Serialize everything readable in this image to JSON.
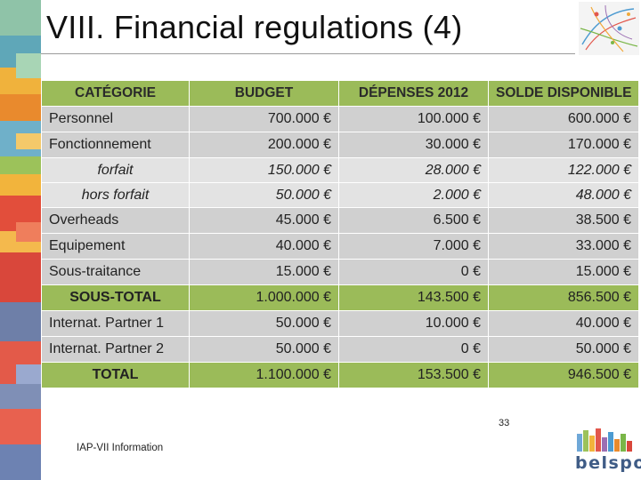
{
  "slide": {
    "title": "VIII. Financial regulations (4)",
    "footer": "IAP-VII Information",
    "page_number": "33",
    "logo_text": "belspo"
  },
  "table": {
    "headers": [
      "CATÉGORIE",
      "BUDGET",
      "DÉPENSES 2012",
      "SOLDE DISPONIBLE"
    ],
    "rows": [
      {
        "category": "Personnel",
        "budget": "700.000 €",
        "expenses": "100.000 €",
        "balance": "600.000 €"
      },
      {
        "category": "Fonctionnement",
        "budget": "200.000 €",
        "expenses": "30.000 €",
        "balance": "170.000 €"
      },
      {
        "category": "forfait",
        "budget": "150.000 €",
        "expenses": "28.000 €",
        "balance": "122.000 €"
      },
      {
        "category": "hors forfait",
        "budget": "50.000 €",
        "expenses": "2.000 €",
        "balance": "48.000 €"
      },
      {
        "category": "Overheads",
        "budget": "45.000 €",
        "expenses": "6.500 €",
        "balance": "38.500 €"
      },
      {
        "category": "Equipement",
        "budget": "40.000 €",
        "expenses": "7.000 €",
        "balance": "33.000 €"
      },
      {
        "category": "Sous-traitance",
        "budget": "15.000 €",
        "expenses": "0 €",
        "balance": "15.000 €"
      },
      {
        "category": "SOUS-TOTAL",
        "budget": "1.000.000 €",
        "expenses": "143.500 €",
        "balance": "856.500 €"
      },
      {
        "category": "Internat. Partner 1",
        "budget": "50.000 €",
        "expenses": "10.000 €",
        "balance": "40.000 €"
      },
      {
        "category": "Internat. Partner 2",
        "budget": "50.000 €",
        "expenses": "0 €",
        "balance": "50.000 €"
      },
      {
        "category": "TOTAL",
        "budget": "1.100.000 €",
        "expenses": "153.500 €",
        "balance": "946.500 €"
      }
    ]
  },
  "colors": {
    "header_green": "#9bbb59",
    "row_gray": "#d0d0d0",
    "subrow_gray": "#e3e3e3",
    "logo_blue": "#3f5c86"
  }
}
